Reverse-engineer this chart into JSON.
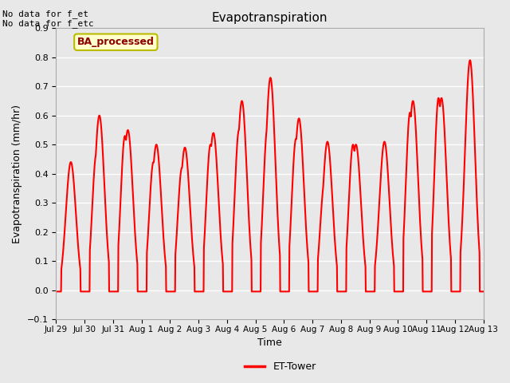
{
  "title": "Evapotranspiration",
  "ylabel": "Evapotranspiration (mm/hr)",
  "xlabel": "Time",
  "ylim": [
    -0.1,
    0.9
  ],
  "line_color": "red",
  "line_width": 1.5,
  "legend_label": "ET-Tower",
  "box_label": "BA_processed",
  "box_facecolor": "#ffffcc",
  "box_edgecolor": "#bbbb00",
  "annotation_text": "No data for f_et\nNo data for f_etc",
  "bg_color": "#e8e8e8",
  "plot_bg_color": "#e8e8e8",
  "grid_color": "white",
  "date_labels": [
    "Jul 29",
    "Jul 30",
    "Jul 31",
    "Aug 1",
    "Aug 2",
    "Aug 3",
    "Aug 4",
    "Aug 5",
    "Aug 6",
    "Aug 7",
    "Aug 8",
    "Aug 9",
    "Aug 10",
    "Aug 11",
    "Aug 12",
    "Aug 13"
  ],
  "total_days": 15,
  "peaks": [
    0.44,
    0.6,
    0.55,
    0.5,
    0.49,
    0.54,
    0.65,
    0.73,
    0.59,
    0.51,
    0.5,
    0.51,
    0.65,
    0.66,
    0.79
  ],
  "peaks2": [
    null,
    0.47,
    0.53,
    0.44,
    0.42,
    0.5,
    0.55,
    0.56,
    0.52,
    0.37,
    0.5,
    null,
    0.61,
    0.66,
    null
  ]
}
